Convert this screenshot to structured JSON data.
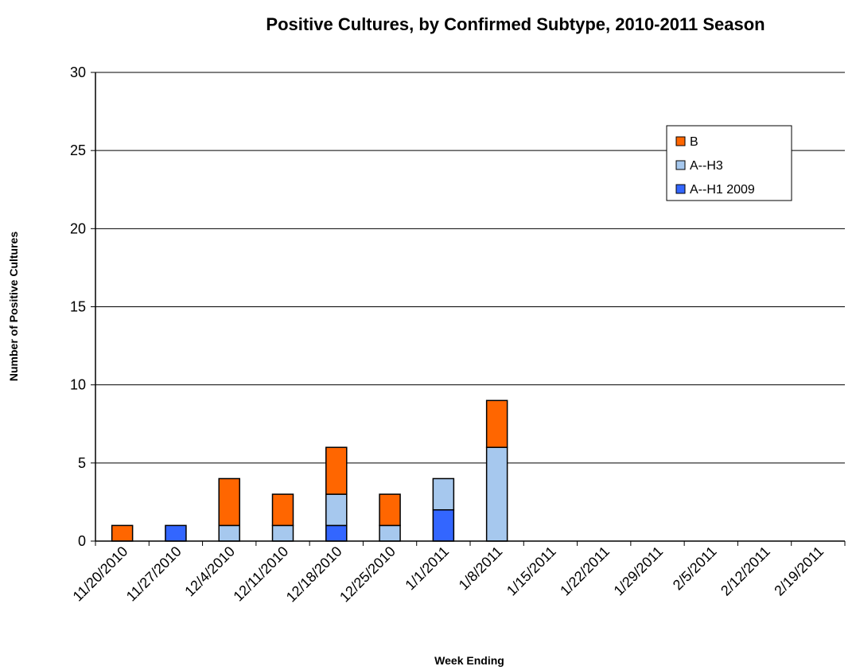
{
  "chart_data": {
    "type": "bar",
    "stacked": true,
    "title": "Positive Cultures, by Confirmed Subtype, 2010-2011 Season",
    "xlabel": "Week Ending",
    "ylabel": "Number of Positive Cultures",
    "ylim": [
      0,
      30
    ],
    "yticks": [
      "0",
      "5",
      "10",
      "15",
      "20",
      "25",
      "30"
    ],
    "grid": true,
    "legend_position": "top-right",
    "categories": [
      "11/20/2010",
      "11/27/2010",
      "12/4/2010",
      "12/11/2010",
      "12/18/2010",
      "12/25/2010",
      "1/1/2011",
      "1/8/2011",
      "1/15/2011",
      "1/22/2011",
      "1/29/2011",
      "2/5/2011",
      "2/12/2011",
      "2/19/2011"
    ],
    "series": [
      {
        "name": "A--H1 2009",
        "color": "#3366ff",
        "values": [
          0,
          1,
          0,
          0,
          1,
          0,
          2,
          0,
          0,
          0,
          0,
          0,
          0,
          0
        ]
      },
      {
        "name": "A--H3",
        "color": "#a6c8ee",
        "values": [
          0,
          0,
          1,
          1,
          2,
          1,
          2,
          6,
          0,
          0,
          0,
          0,
          0,
          0
        ]
      },
      {
        "name": "B",
        "color": "#ff6600",
        "values": [
          1,
          0,
          3,
          2,
          3,
          2,
          0,
          3,
          0,
          0,
          0,
          0,
          0,
          0
        ]
      }
    ],
    "legend_order": [
      "B",
      "A--H3",
      "A--H1 2009"
    ]
  }
}
